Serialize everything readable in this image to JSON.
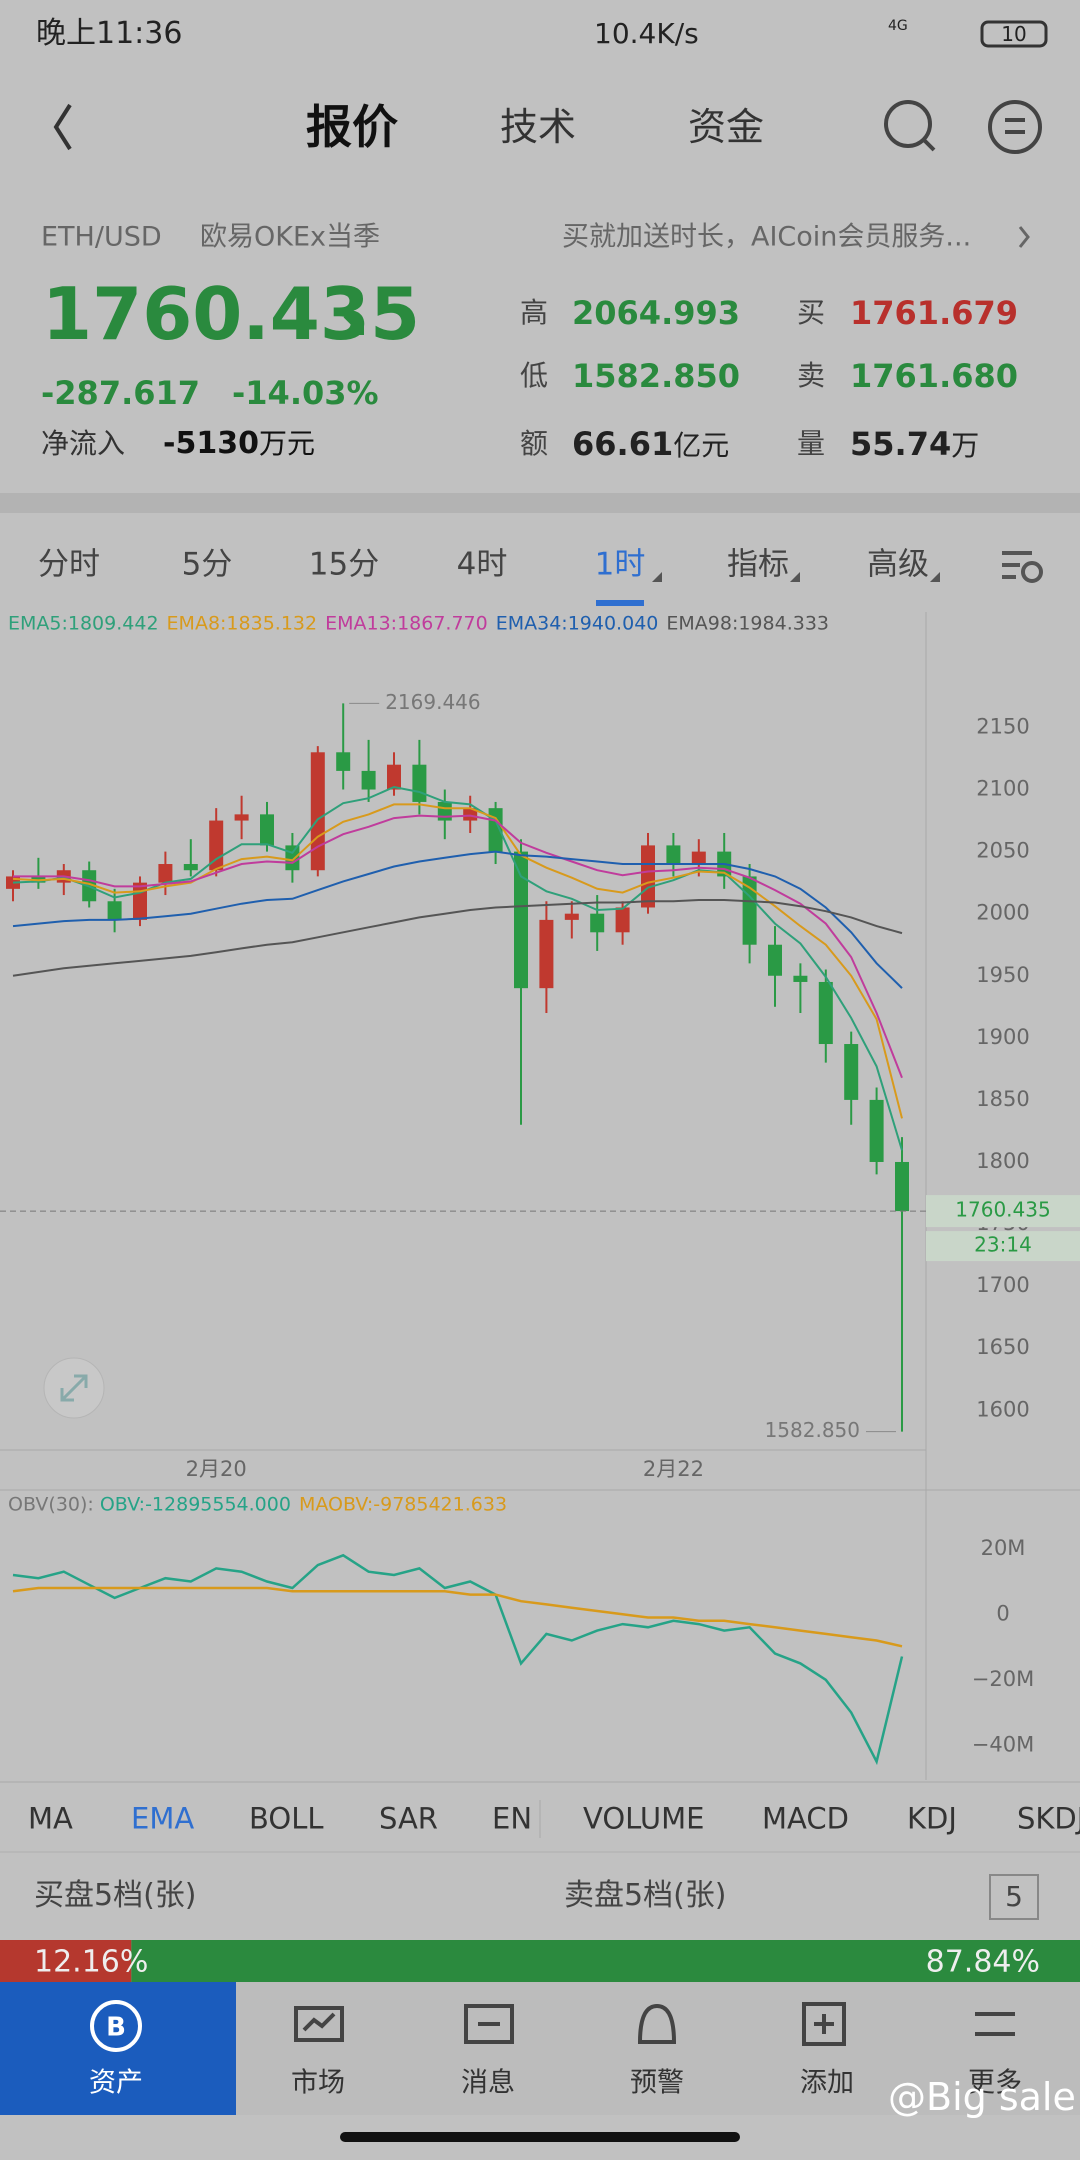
{
  "status_bar": {
    "time": "晚上11:36",
    "speed": "10.4K/s",
    "network": "4G",
    "battery": "10"
  },
  "nav": {
    "tabs": [
      "报价",
      "技术",
      "资金"
    ],
    "active": 0
  },
  "quote": {
    "pair": "ETH/USD",
    "exchange": "欧易OKEx当季",
    "promo": "买就加送时长，AICoin会员服务...",
    "price": "1760.435",
    "change": "-287.617",
    "change_pct": "-14.03%",
    "net_inflow_label": "净流入",
    "net_inflow": "-5130",
    "net_inflow_unit": "万元",
    "stats": [
      [
        {
          "label": "高",
          "value": "2064.993",
          "color": "#2a8a3e"
        },
        {
          "label": "买",
          "value": "1761.679",
          "color": "#b8302c"
        }
      ],
      [
        {
          "label": "低",
          "value": "1582.850",
          "color": "#2a8a3e"
        },
        {
          "label": "卖",
          "value": "1761.680",
          "color": "#2a8a3e"
        }
      ],
      [
        {
          "label": "额",
          "value": "66.61",
          "unit": "亿元",
          "color": "#222222"
        },
        {
          "label": "量",
          "value": "55.74",
          "unit": "万",
          "color": "#222222"
        }
      ]
    ]
  },
  "periods": {
    "items": [
      "分时",
      "5分",
      "15分",
      "4时",
      "1时",
      "指标",
      "高级"
    ],
    "active": 4
  },
  "chart_data": [
    {
      "type": "candlestick",
      "up_color": "#c0392f",
      "down_color": "#2a9a45",
      "categories": [
        null,
        null,
        null,
        null,
        null,
        null,
        null,
        null,
        "2月20",
        null,
        null,
        null,
        null,
        null,
        null,
        null,
        null,
        null,
        null,
        null,
        null,
        null,
        null,
        null,
        null,
        null,
        "2月22",
        null,
        null,
        null,
        null,
        null,
        null,
        null,
        null,
        null
      ],
      "open": [
        2020,
        2030,
        2025,
        2035,
        2010,
        1995,
        2025,
        2040,
        2035,
        2075,
        2080,
        2055,
        2035,
        2130,
        2115,
        2100,
        2120,
        2090,
        2075,
        2085,
        2050,
        1940,
        1995,
        2000,
        1985,
        2005,
        2055,
        2040,
        2050,
        2030,
        1975,
        1950,
        1945,
        1895,
        1850,
        1800
      ],
      "high": [
        2035,
        2045,
        2040,
        2042,
        2020,
        2030,
        2050,
        2060,
        2085,
        2095,
        2090,
        2065,
        2135,
        2169.446,
        2140,
        2130,
        2140,
        2100,
        2095,
        2090,
        2060,
        2010,
        2010,
        2015,
        2010,
        2065,
        2065,
        2060,
        2065,
        2040,
        1990,
        1960,
        1955,
        1905,
        1860,
        1820
      ],
      "low": [
        2010,
        2020,
        2015,
        2005,
        1985,
        1990,
        2015,
        2030,
        2030,
        2060,
        2050,
        2025,
        2030,
        2100,
        2090,
        2095,
        2080,
        2060,
        2065,
        2040,
        1830,
        1920,
        1980,
        1970,
        1975,
        2000,
        2030,
        2030,
        2020,
        1960,
        1925,
        1920,
        1880,
        1830,
        1790,
        1582.85
      ],
      "close": [
        2030,
        2025,
        2035,
        2010,
        1995,
        2025,
        2040,
        2035,
        2075,
        2080,
        2055,
        2035,
        2130,
        2115,
        2100,
        2120,
        2090,
        2075,
        2085,
        2050,
        1940,
        1995,
        2000,
        1985,
        2005,
        2055,
        2040,
        2050,
        2030,
        1975,
        1950,
        1945,
        1895,
        1850,
        1800,
        1760.435
      ],
      "series": [
        {
          "name": "EMA5:1809.442",
          "color": "#2fa07a",
          "values": [
            2025,
            2026,
            2029,
            2022,
            2013,
            2017,
            2025,
            2028,
            2044,
            2056,
            2056,
            2049,
            2076,
            2089,
            2093,
            2102,
            2098,
            2090,
            2088,
            2075,
            2030,
            2018,
            2012,
            2003,
            2004,
            2021,
            2027,
            2035,
            2033,
            2014,
            1992,
            1976,
            1949,
            1916,
            1877,
            1809.442
          ]
        },
        {
          "name": "EMA8:1835.132",
          "color": "#d89a1c",
          "values": [
            2028,
            2027,
            2028,
            2024,
            2017,
            2018,
            2022,
            2025,
            2036,
            2044,
            2046,
            2043,
            2062,
            2074,
            2080,
            2088,
            2088,
            2085,
            2085,
            2077,
            2047,
            2037,
            2029,
            2020,
            2017,
            2025,
            2029,
            2034,
            2033,
            2021,
            2006,
            1990,
            1975,
            1950,
            1915,
            1835.132
          ]
        },
        {
          "name": "EMA13:1867.770",
          "color": "#c03c9c",
          "values": [
            2030,
            2030,
            2030,
            2027,
            2022,
            2022,
            2024,
            2026,
            2033,
            2040,
            2042,
            2041,
            2054,
            2064,
            2070,
            2077,
            2079,
            2078,
            2079,
            2075,
            2057,
            2049,
            2042,
            2035,
            2031,
            2034,
            2035,
            2037,
            2036,
            2029,
            2019,
            2008,
            1992,
            1965,
            1920,
            1867.77
          ]
        },
        {
          "name": "EMA34:1940.040",
          "color": "#1f5fae",
          "values": [
            1990,
            1992,
            1994,
            1995,
            1995,
            1996,
            1998,
            2000,
            2004,
            2008,
            2011,
            2012,
            2019,
            2026,
            2032,
            2038,
            2042,
            2045,
            2048,
            2050,
            2047,
            2046,
            2044,
            2042,
            2040,
            2040,
            2040,
            2040,
            2040,
            2036,
            2030,
            2020,
            2005,
            1985,
            1960,
            1940.04
          ]
        },
        {
          "name": "EMA98:1984.333",
          "color": "#555555",
          "values": [
            1950,
            1953,
            1956,
            1958,
            1960,
            1962,
            1964,
            1966,
            1969,
            1972,
            1975,
            1977,
            1981,
            1985,
            1989,
            1993,
            1997,
            2000,
            2003,
            2005,
            2006,
            2007,
            2008,
            2009,
            2009,
            2010,
            2010,
            2011,
            2011,
            2010,
            2009,
            2006,
            2002,
            1997,
            1990,
            1984.333
          ]
        }
      ],
      "ylim": [
        1568,
        2214
      ],
      "yticks": [
        1600,
        1650,
        1700,
        1750,
        1800,
        1850,
        1900,
        1950,
        2000,
        2050,
        2100,
        2150
      ],
      "max_label": "2169.446",
      "min_label": "1582.850",
      "last_label": "1760.435",
      "countdown": "23:14"
    },
    {
      "type": "line",
      "title": "OBV(30):",
      "series": [
        {
          "name": "OBV:-12895554.000",
          "color": "#26a387",
          "values": [
            12,
            11,
            13,
            9,
            5,
            8,
            11,
            10,
            14,
            13,
            10,
            8,
            15,
            18,
            13,
            12,
            14,
            8,
            10,
            6,
            -15,
            -6,
            -8,
            -5,
            -3,
            -4,
            -2,
            -3,
            -5,
            -4,
            -12,
            -15,
            -20,
            -30,
            -45,
            -12.895554
          ]
        },
        {
          "name": "MAOBV:-9785421.633",
          "color": "#d89a1c",
          "values": [
            7,
            8,
            8,
            8,
            8,
            8,
            8,
            8,
            8,
            8,
            8,
            7,
            7,
            7,
            7,
            7,
            7,
            7,
            6,
            6,
            4,
            3,
            2,
            1,
            0,
            -1,
            -1,
            -2,
            -2,
            -3,
            -4,
            -5,
            -6,
            -7,
            -8,
            -9.785421633
          ]
        }
      ],
      "ylim": [
        -50,
        30
      ],
      "yticks": [
        {
          "value": 20,
          "label": "20M"
        },
        0,
        {
          "value": -20,
          "label": "−20M"
        },
        {
          "value": -40,
          "label": "−40M"
        }
      ]
    },
    {
      "type": "ratio-bar",
      "values": [
        12.16,
        87.84
      ],
      "value_labels": [
        "12.16%",
        "87.84%"
      ],
      "colors": [
        "#b5382e",
        "#2b8a3e"
      ]
    }
  ],
  "indicators": {
    "items": [
      "MA",
      "EMA",
      "BOLL",
      "SAR",
      "EN",
      "VOLUME",
      "MACD",
      "KDJ",
      "SKDJ"
    ],
    "active": 1
  },
  "order_book": {
    "buy_title": "买盘5档(张)",
    "sell_title": "卖盘5档(张)",
    "depth": "5"
  },
  "bottom_nav": {
    "items": [
      "资产",
      "市场",
      "消息",
      "预警",
      "添加",
      "更多"
    ],
    "active": 0
  },
  "watermark": "@Big sale"
}
